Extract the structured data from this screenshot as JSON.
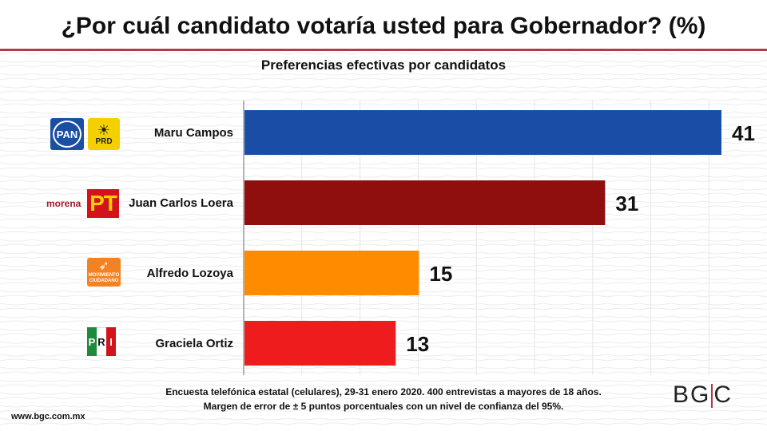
{
  "title": "¿Por cuál candidato votaría usted para Gobernador? (%)",
  "chart_data": {
    "type": "bar",
    "orientation": "horizontal",
    "title": "Preferencias efectivas por candidatos",
    "categories": [
      "Maru Campos",
      "Juan Carlos Loera",
      "Alfredo Lozoya",
      "Graciela Ortiz"
    ],
    "values": [
      41,
      31,
      15,
      13
    ],
    "colors": [
      "#1a4ea6",
      "#8f0e0e",
      "#ff8c00",
      "#ee1c1c"
    ],
    "xlim": [
      0,
      45
    ],
    "xlabel": "",
    "ylabel": "",
    "grid": true
  },
  "party_logos": {
    "pan": {
      "label": "PAN",
      "icon": "pan-logo-icon"
    },
    "prd": {
      "label": "PRD",
      "icon": "prd-logo-icon"
    },
    "morena": {
      "label": "morena",
      "icon": "morena-logo-icon"
    },
    "pt": {
      "label": "PT",
      "icon": "pt-logo-icon"
    },
    "movimiento_ciudadano": {
      "label": "MOVIMIENTO CIUDADANO",
      "icon": "movimiento-ciudadano-logo-icon"
    },
    "pri": {
      "letters": [
        "P",
        "R",
        "I"
      ],
      "icon": "pri-logo-icon"
    }
  },
  "footnote": {
    "line1": "Encuesta telefónica estatal (celulares), 29-31 enero 2020. 400 entrevistas a mayores de 18 años.",
    "line2": "Margen de error de  ± 5 puntos porcentuales con un nivel de confianza del 95%."
  },
  "website": "www.bgc.com.mx",
  "brand": {
    "left": "BG",
    "right": "C",
    "accent": "#b23a48"
  }
}
